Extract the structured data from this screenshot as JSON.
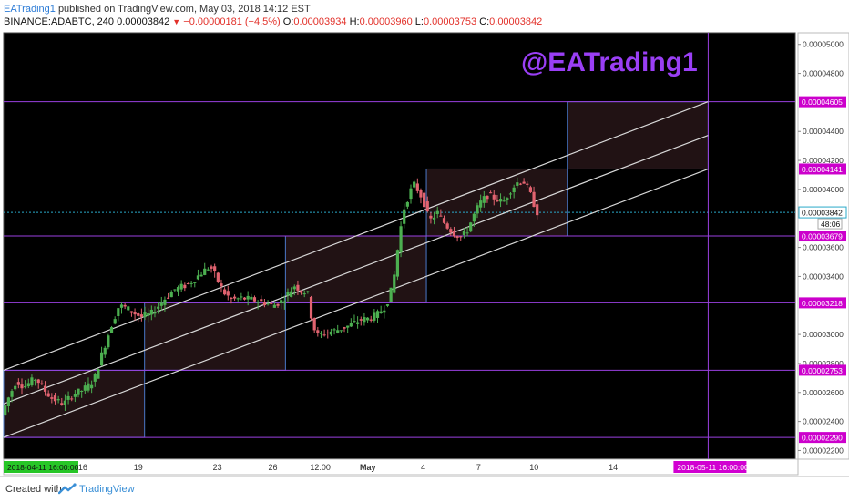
{
  "header": {
    "author": "EATrading1",
    "published_text": "published on TradingView.com, May 03, 2018 14:12 EST",
    "symbol": "BINANCE:ADABTC, 240",
    "last": "0.00003842",
    "change": "−0.00000181 (−4.5%)",
    "open_label": "O:",
    "open": "0.00003934",
    "high_label": "H:",
    "high": "0.00003960",
    "low_label": "L:",
    "low": "0.00003753",
    "close_label": "C:",
    "close": "0.00003842"
  },
  "watermark": "@EATrading1",
  "footer": {
    "created_with": "Created with",
    "brand": "TradingView"
  },
  "colors": {
    "background": "#000000",
    "up": "#4caf50",
    "down": "#e26370",
    "level_line": "#9a40e0",
    "level_label": "#cc00cc",
    "box_border": "#4a78c8",
    "box_fill": "rgba(150,80,90,0.22)",
    "channel": "#d8d8d8",
    "watermark": "#9a3ff5",
    "current_price": "#2aa9c9",
    "date_tag": "#27c627",
    "date_tag_right": "#d100d1"
  },
  "chart_data": {
    "type": "candlestick",
    "y_axis_ticks": [
      "0.00005000",
      "0.00004800",
      "0.00004400",
      "0.00004200",
      "0.00004000",
      "0.00003600",
      "0.00003400",
      "0.00003000",
      "0.00002800",
      "0.00002600",
      "0.00002400",
      "0.00002200"
    ],
    "y_axis_values": [
      5000,
      4800,
      4400,
      4200,
      4000,
      3600,
      3400,
      3000,
      2800,
      2600,
      2400,
      2200
    ],
    "ylim": [
      2140,
      5080
    ],
    "x_axis_ticks": [
      {
        "label": "16",
        "pos": 0.1
      },
      {
        "label": "19",
        "pos": 0.17
      },
      {
        "label": "23",
        "pos": 0.27
      },
      {
        "label": "26",
        "pos": 0.34
      },
      {
        "label": "12:00",
        "pos": 0.4
      },
      {
        "label": "May",
        "pos": 0.46
      },
      {
        "label": "4",
        "pos": 0.53
      },
      {
        "label": "7",
        "pos": 0.6
      },
      {
        "label": "10",
        "pos": 0.67
      },
      {
        "label": "14",
        "pos": 0.77
      }
    ],
    "horizontal_levels": [
      {
        "value": 4605,
        "label": "0.00004605"
      },
      {
        "value": 4141,
        "label": "0.00004141"
      },
      {
        "value": 3679,
        "label": "0.00003679"
      },
      {
        "value": 3218,
        "label": "0.00003218"
      },
      {
        "value": 2753,
        "label": "0.00002753"
      },
      {
        "value": 2290,
        "label": "0.00002290"
      }
    ],
    "current_price": {
      "value": 3842,
      "label": "0.00003842",
      "countdown": "48:06"
    },
    "date_tags": {
      "start": "2018-04-11 16:00:00",
      "end": "2018-05-11 16:00:00"
    },
    "channel": {
      "lower_start": [
        0.0,
        2290
      ],
      "lower_end": [
        0.89,
        4141
      ],
      "upper_start": [
        0.0,
        2753
      ],
      "upper_end": [
        0.89,
        4605
      ],
      "mid_start": [
        0.0,
        2521
      ],
      "mid_end": [
        0.89,
        4373
      ]
    },
    "boxes": [
      {
        "x0": 0.0,
        "x1": 0.178,
        "y0": 2290,
        "y1": 2753
      },
      {
        "x0": 0.178,
        "x1": 0.356,
        "y0": 2753,
        "y1": 3218
      },
      {
        "x0": 0.356,
        "x1": 0.534,
        "y0": 3218,
        "y1": 3679
      },
      {
        "x0": 0.534,
        "x1": 0.712,
        "y0": 3679,
        "y1": 4141
      },
      {
        "x0": 0.712,
        "x1": 0.89,
        "y0": 4141,
        "y1": 4605
      }
    ],
    "vertical_marker_pos": 0.89,
    "price_path": [
      [
        0.0,
        2420
      ],
      [
        0.01,
        2560
      ],
      [
        0.02,
        2680
      ],
      [
        0.03,
        2640
      ],
      [
        0.045,
        2700
      ],
      [
        0.055,
        2620
      ],
      [
        0.065,
        2560
      ],
      [
        0.08,
        2520
      ],
      [
        0.09,
        2580
      ],
      [
        0.105,
        2620
      ],
      [
        0.118,
        2680
      ],
      [
        0.128,
        2860
      ],
      [
        0.14,
        3060
      ],
      [
        0.15,
        3200
      ],
      [
        0.16,
        3180
      ],
      [
        0.168,
        3150
      ],
      [
        0.178,
        3120
      ],
      [
        0.19,
        3140
      ],
      [
        0.2,
        3200
      ],
      [
        0.21,
        3260
      ],
      [
        0.22,
        3310
      ],
      [
        0.235,
        3340
      ],
      [
        0.245,
        3380
      ],
      [
        0.255,
        3430
      ],
      [
        0.265,
        3470
      ],
      [
        0.272,
        3400
      ],
      [
        0.282,
        3290
      ],
      [
        0.292,
        3240
      ],
      [
        0.305,
        3250
      ],
      [
        0.318,
        3240
      ],
      [
        0.33,
        3225
      ],
      [
        0.345,
        3200
      ],
      [
        0.355,
        3230
      ],
      [
        0.365,
        3290
      ],
      [
        0.372,
        3340
      ],
      [
        0.38,
        3300
      ],
      [
        0.388,
        3290
      ],
      [
        0.394,
        3080
      ],
      [
        0.4,
        2990
      ],
      [
        0.41,
        3010
      ],
      [
        0.425,
        3030
      ],
      [
        0.44,
        3060
      ],
      [
        0.455,
        3100
      ],
      [
        0.465,
        3110
      ],
      [
        0.475,
        3130
      ],
      [
        0.485,
        3190
      ],
      [
        0.492,
        3260
      ],
      [
        0.498,
        3420
      ],
      [
        0.504,
        3680
      ],
      [
        0.51,
        3870
      ],
      [
        0.516,
        3960
      ],
      [
        0.522,
        4040
      ],
      [
        0.528,
        3990
      ],
      [
        0.534,
        3930
      ],
      [
        0.542,
        3780
      ],
      [
        0.552,
        3840
      ],
      [
        0.562,
        3760
      ],
      [
        0.572,
        3700
      ],
      [
        0.582,
        3670
      ],
      [
        0.59,
        3720
      ],
      [
        0.598,
        3820
      ],
      [
        0.605,
        3900
      ],
      [
        0.615,
        3960
      ],
      [
        0.625,
        3940
      ],
      [
        0.635,
        3910
      ],
      [
        0.645,
        4000
      ],
      [
        0.655,
        4060
      ],
      [
        0.662,
        4050
      ],
      [
        0.67,
        3960
      ],
      [
        0.678,
        3842
      ]
    ]
  }
}
